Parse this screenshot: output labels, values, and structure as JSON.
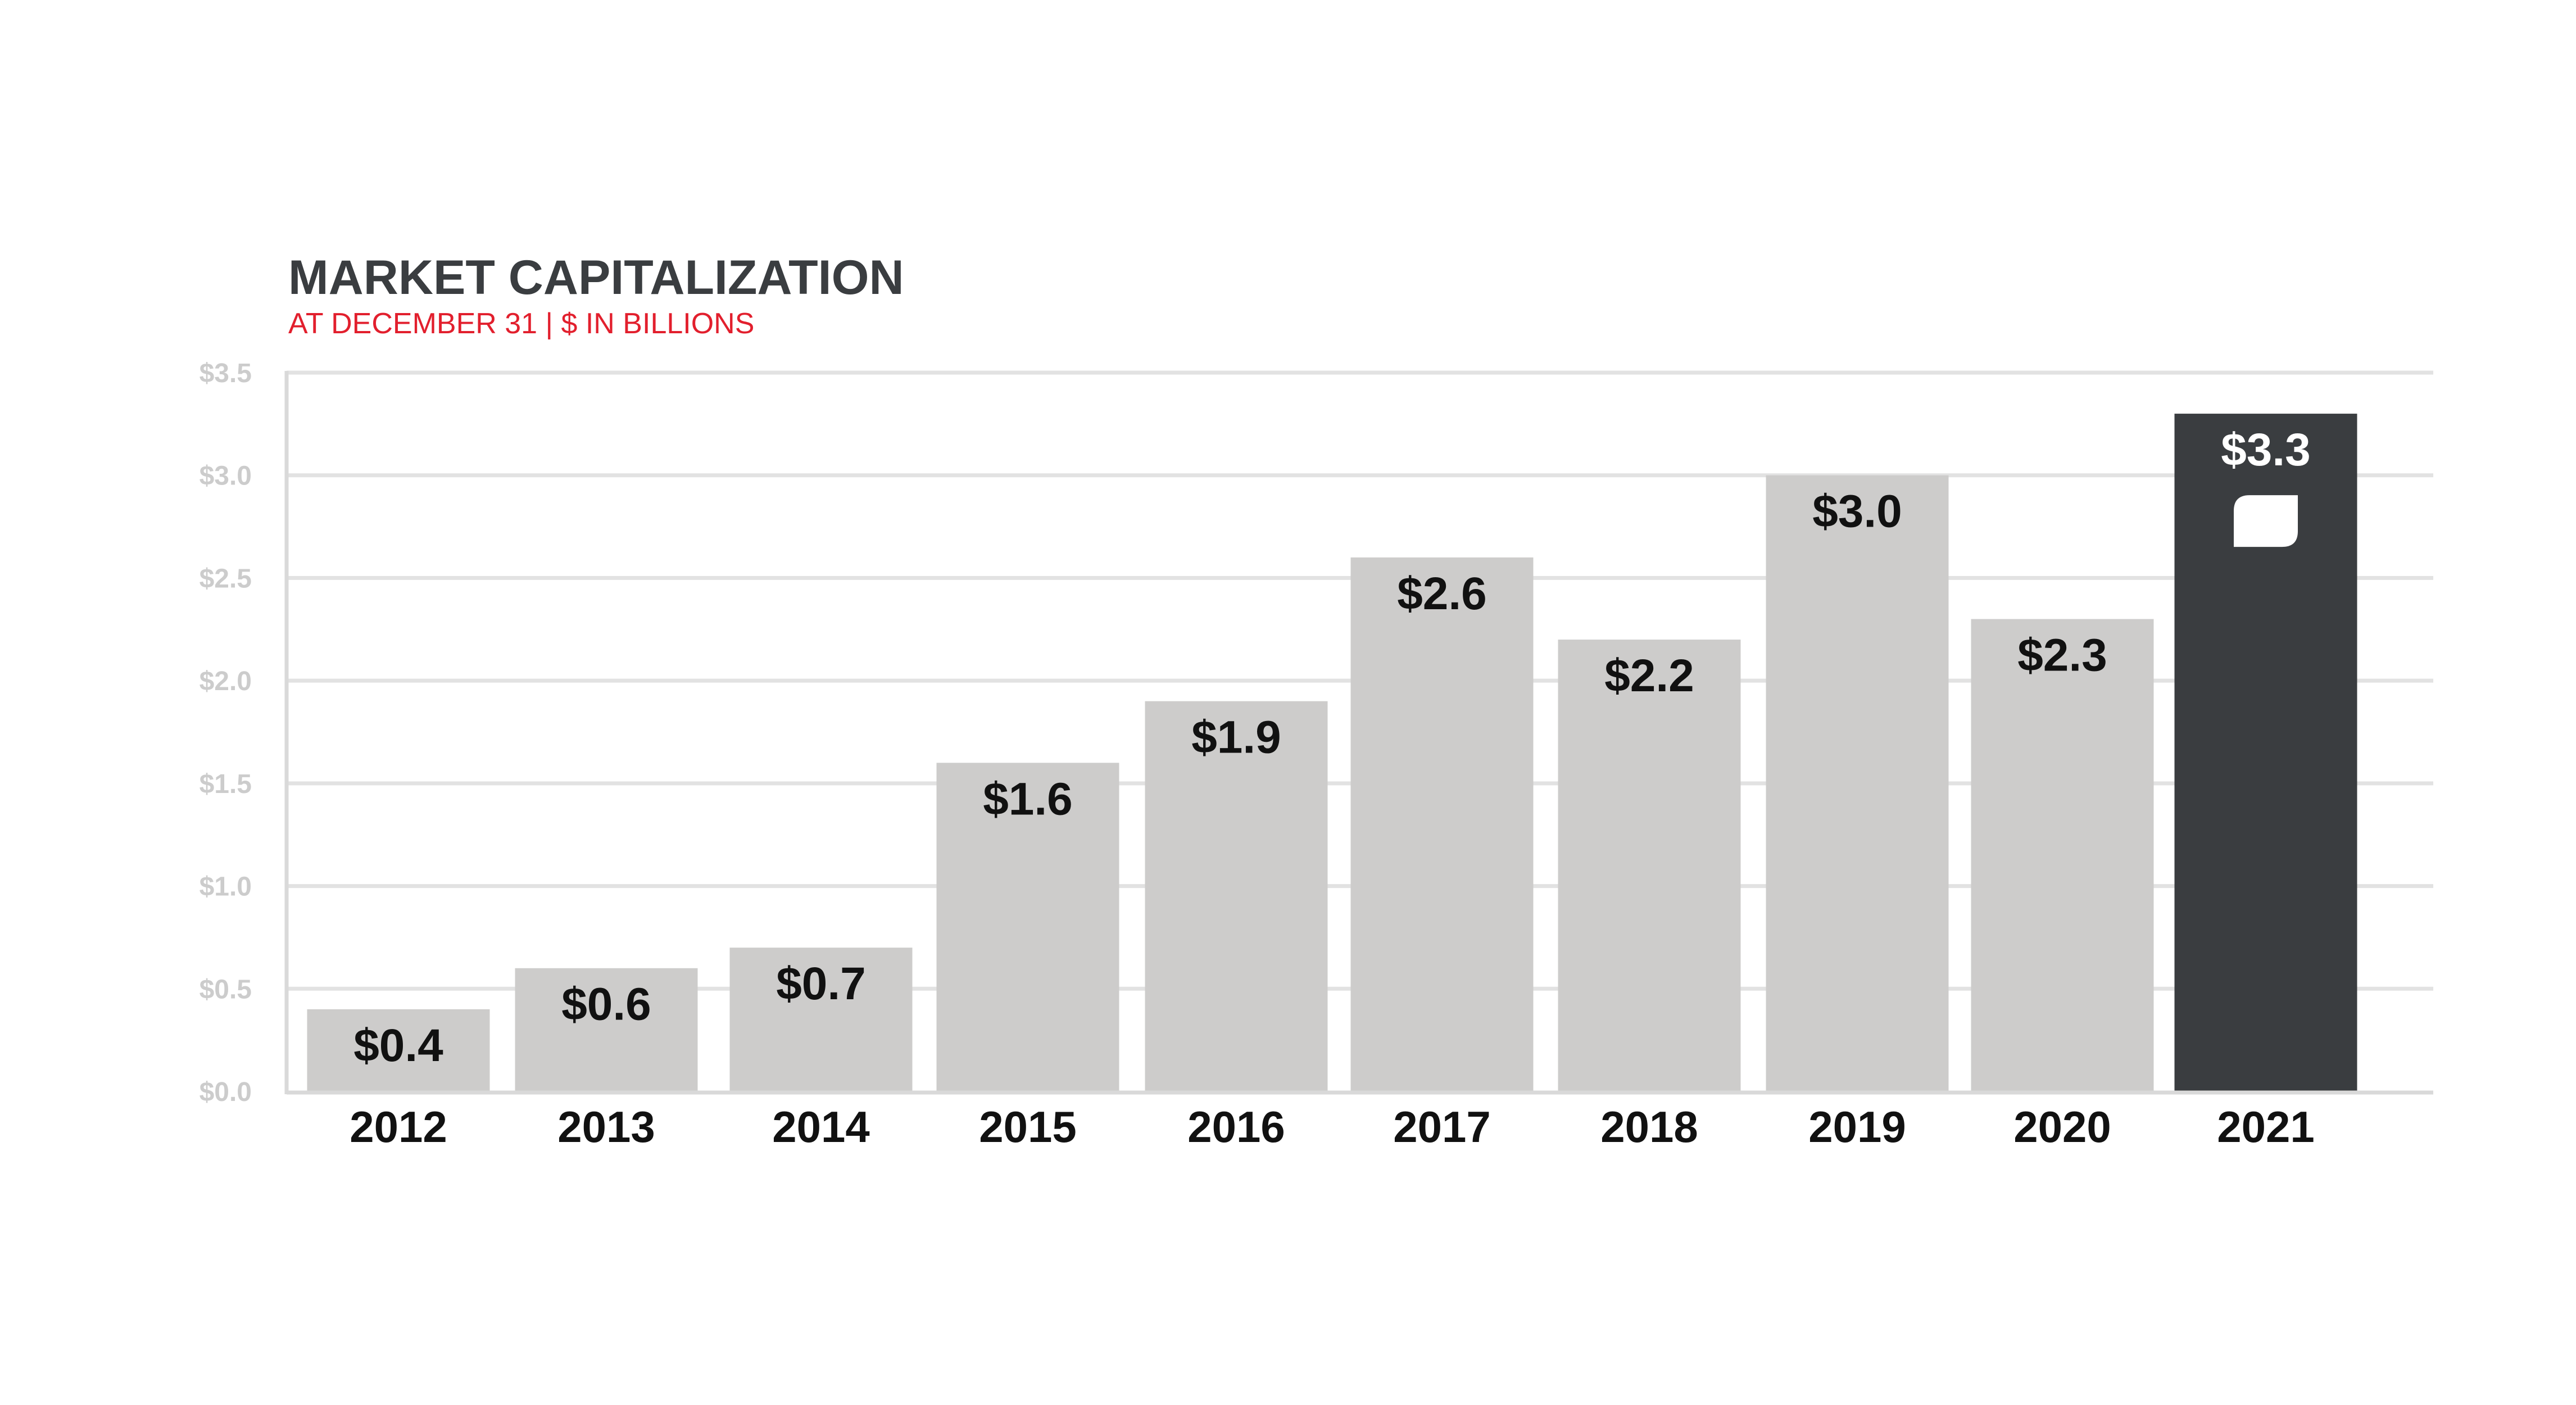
{
  "chart_data": {
    "type": "bar",
    "title": "MARKET CAPITALIZATION",
    "subtitle": "AT DECEMBER 31 | $ IN BILLIONS",
    "xlabel": "",
    "ylabel": "",
    "categories": [
      "2012",
      "2013",
      "2014",
      "2015",
      "2016",
      "2017",
      "2018",
      "2019",
      "2020",
      "2021"
    ],
    "values": [
      0.4,
      0.6,
      0.7,
      1.6,
      1.9,
      2.6,
      2.2,
      3.0,
      2.3,
      3.3
    ],
    "value_labels": [
      "$0.4",
      "$0.6",
      "$0.7",
      "$1.6",
      "$1.9",
      "$2.6",
      "$2.2",
      "$3.0",
      "$2.3",
      "$3.3"
    ],
    "highlight_index": 9,
    "ylim": [
      0,
      3.5
    ],
    "yticks": [
      0,
      0.5,
      1.0,
      1.5,
      2.0,
      2.5,
      3.0,
      3.5
    ],
    "ytick_labels": [
      "$0.0",
      "$0.5",
      "$1.0",
      "$1.5",
      "$2.0",
      "$2.5",
      "$3.0",
      "$3.5"
    ],
    "grid": true,
    "legend": "none",
    "highlight_icon": "leaf-logo-icon",
    "colors": {
      "title": "#3a3d40",
      "subtitle": "#e21f2d",
      "bar": "#cdcccb",
      "bar_highlight": "#3a3d40",
      "grid": "#e2e2e2",
      "axis": "#d9d9d9",
      "tick_label": "#cccccc",
      "value_label": "#111111",
      "value_label_highlight": "#ffffff",
      "category_label": "#111111"
    }
  }
}
